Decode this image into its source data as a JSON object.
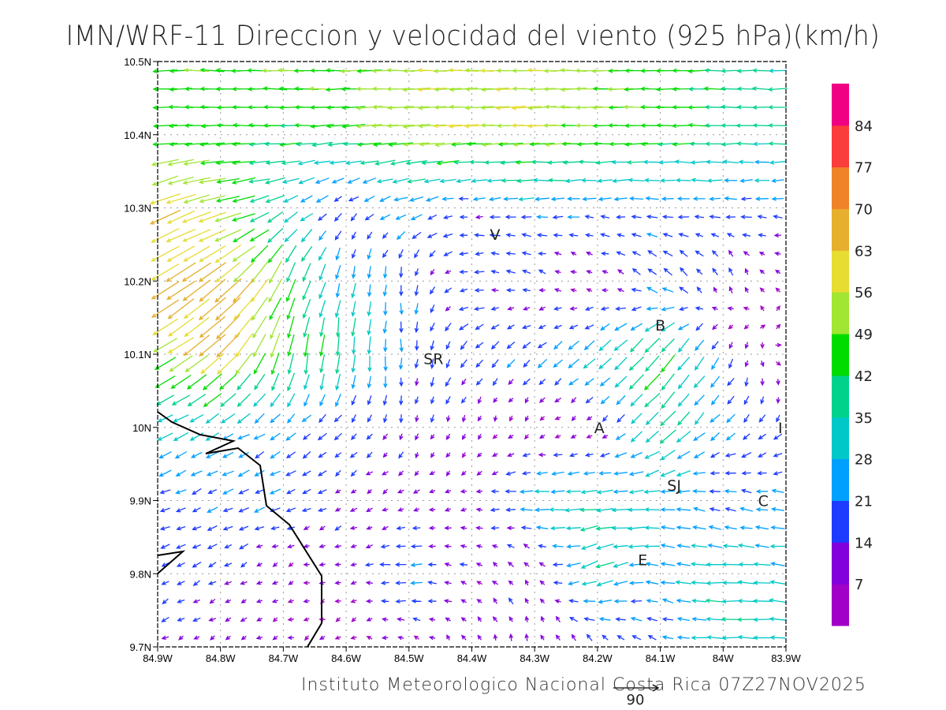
{
  "chart_data": {
    "type": "vector_field",
    "title": "IMN/WRF-11 Direccion y velocidad del viento (925 hPa)(km/h)",
    "footer": "Instituto Meteorologico Nacional Costa Rica 07Z27NOV2025",
    "reference_vector": {
      "value": 90,
      "label": "90"
    },
    "units": "km/h",
    "x_axis": {
      "range_lon_west": [
        84.9,
        83.9
      ],
      "ticks": [
        "84.9W",
        "84.8W",
        "84.7W",
        "84.6W",
        "84.5W",
        "84.4W",
        "84.3W",
        "84.2W",
        "84.1W",
        "84W",
        "83.9W"
      ]
    },
    "y_axis": {
      "range_lat": [
        9.7,
        10.5
      ],
      "ticks": [
        "10.5N",
        "10.4N",
        "10.3N",
        "10.2N",
        "10.1N",
        "10N",
        "9.9N",
        "9.8N",
        "9.7N"
      ]
    },
    "grid": true,
    "colorbar": {
      "labels": [
        "7",
        "14",
        "21",
        "28",
        "35",
        "42",
        "49",
        "56",
        "63",
        "70",
        "77",
        "84"
      ],
      "bin_width": 7,
      "colors": [
        "#a000c8",
        "#8200dc",
        "#1e3cff",
        "#00a0ff",
        "#00c8c8",
        "#00d28c",
        "#00dc00",
        "#a0e632",
        "#e6dc32",
        "#e6af2d",
        "#f08228",
        "#fa3c3c",
        "#f00082"
      ]
    },
    "annotations": [
      {
        "text": "V",
        "lon_w": 84.363,
        "lat": 10.264
      },
      {
        "text": "SR",
        "lon_w": 84.461,
        "lat": 10.094
      },
      {
        "text": "B",
        "lon_w": 84.1,
        "lat": 10.14
      },
      {
        "text": "A",
        "lon_w": 84.197,
        "lat": 10.0
      },
      {
        "text": "SJ",
        "lon_w": 84.078,
        "lat": 9.921
      },
      {
        "text": "C",
        "lon_w": 83.936,
        "lat": 9.9
      },
      {
        "text": "E",
        "lon_w": 84.128,
        "lat": 9.819
      },
      {
        "text": "I",
        "lon_w": 83.909,
        "lat": 10.0
      }
    ],
    "coastline_lon_lat": [
      [
        [
          84.897,
          9.997
        ],
        [
          84.877,
          9.989
        ],
        [
          84.832,
          9.972
        ],
        [
          84.779,
          9.963
        ],
        [
          84.823,
          9.946
        ],
        [
          84.772,
          9.959
        ],
        [
          84.737,
          9.935
        ],
        [
          84.727,
          9.881
        ],
        [
          84.691,
          9.855
        ],
        [
          84.639,
          9.785
        ],
        [
          84.639,
          9.72
        ],
        [
          84.661,
          9.688
        ]
      ],
      [
        [
          84.897,
          9.826
        ],
        [
          84.859,
          9.831
        ],
        [
          84.897,
          9.801
        ]
      ]
    ],
    "field_coarse": {
      "note": "u,v wind components (km/h) on 0.1 degree grid, rows lat 10.5..9.7, cols 84.9W..83.9W",
      "u": [
        [
          -45,
          -48,
          -50,
          -50,
          -55,
          -58,
          -55,
          -50,
          -45,
          -40,
          -35
        ],
        [
          -45,
          -45,
          -42,
          -45,
          -52,
          -55,
          -55,
          -50,
          -45,
          -40,
          -35
        ],
        [
          -60,
          -50,
          -30,
          -10,
          -25,
          -15,
          -25,
          -20,
          -20,
          -20,
          -20
        ],
        [
          -55,
          -55,
          -20,
          -5,
          0,
          -18,
          -10,
          -5,
          -20,
          -5,
          -5
        ],
        [
          -45,
          -50,
          -8,
          -3,
          0,
          -15,
          -15,
          -25,
          -30,
          -10,
          12
        ],
        [
          -30,
          -22,
          -18,
          -12,
          -3,
          -3,
          -4,
          -5,
          -30,
          -15,
          -10
        ],
        [
          -18,
          -18,
          -18,
          -10,
          -10,
          -8,
          -30,
          -35,
          -28,
          -20,
          -25
        ],
        [
          -15,
          -15,
          -6,
          -8,
          -25,
          -10,
          -5,
          -35,
          -25,
          -35,
          -30
        ],
        [
          -12,
          -8,
          -6,
          -4,
          -6,
          -5,
          -2,
          -10,
          -15,
          -35,
          -30
        ]
      ],
      "v": [
        [
          0,
          1,
          0,
          0,
          0,
          0,
          0,
          0,
          0,
          0,
          0
        ],
        [
          -3,
          0,
          0,
          -3,
          -3,
          -2,
          -2,
          -1,
          0,
          0,
          0
        ],
        [
          -25,
          -10,
          -15,
          -10,
          -8,
          -2,
          0,
          0,
          0,
          0,
          0
        ],
        [
          -35,
          -45,
          -45,
          -25,
          -20,
          0,
          5,
          5,
          15,
          15,
          5
        ],
        [
          -25,
          -45,
          -45,
          -40,
          -20,
          -15,
          -15,
          -20,
          -35,
          -20,
          0
        ],
        [
          -15,
          -12,
          -12,
          -10,
          -12,
          -10,
          -4,
          -3,
          -30,
          -15,
          -15
        ],
        [
          -8,
          -8,
          -8,
          -7,
          -5,
          -2,
          0,
          -3,
          2,
          5,
          5
        ],
        [
          -8,
          -8,
          -3,
          -2,
          0,
          5,
          10,
          -15,
          5,
          0,
          2
        ],
        [
          -6,
          -4,
          -2,
          -3,
          3,
          8,
          12,
          15,
          5,
          0,
          3
        ]
      ]
    }
  }
}
